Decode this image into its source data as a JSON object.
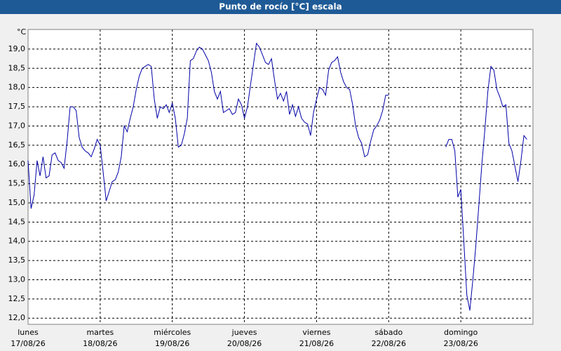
{
  "chart_data": {
    "type": "line",
    "title": "Punto de rocío [°C] escala",
    "y_unit": "°C",
    "x": [
      0,
      1,
      2,
      3,
      4,
      5,
      6,
      7,
      8,
      9,
      10,
      11,
      12,
      13,
      14,
      15,
      16,
      17,
      18,
      19,
      20,
      21,
      22,
      23,
      24,
      25,
      26,
      27,
      28,
      29,
      30,
      31,
      32,
      33,
      34,
      35,
      36,
      37,
      38,
      39,
      40,
      41,
      42,
      43,
      44,
      45,
      46,
      47,
      48,
      49,
      50,
      51,
      52,
      53,
      54,
      55,
      56,
      57,
      58,
      59,
      60,
      61,
      62,
      63,
      64,
      65,
      66,
      67,
      68,
      69,
      70,
      71,
      72,
      73,
      74,
      75,
      76,
      77,
      78,
      79,
      80,
      81,
      82,
      83,
      84,
      85,
      86,
      87,
      88,
      89,
      90,
      91,
      92,
      93,
      94,
      95,
      96,
      97,
      98,
      99,
      100,
      101,
      102,
      103,
      104,
      105,
      106,
      107,
      108,
      109,
      110,
      111,
      112,
      113,
      114,
      115,
      116,
      117,
      118,
      119,
      120,
      130,
      139,
      140,
      141,
      142,
      143,
      144,
      145,
      146,
      147,
      148,
      149,
      150,
      151,
      152,
      153,
      154,
      155,
      156,
      157,
      158,
      159,
      160,
      161,
      162,
      163,
      164,
      165,
      166
    ],
    "series": [
      {
        "name": "Punto de rocío",
        "color": "#0000a8",
        "values": [
          16.1,
          14.85,
          15.2,
          16.1,
          15.7,
          16.2,
          15.65,
          15.7,
          16.25,
          16.3,
          16.1,
          16.05,
          15.9,
          16.6,
          17.5,
          17.5,
          17.4,
          16.7,
          16.45,
          16.35,
          16.3,
          16.2,
          16.4,
          16.65,
          16.5,
          15.8,
          15.05,
          15.3,
          15.55,
          15.6,
          15.8,
          16.2,
          17.0,
          16.85,
          17.2,
          17.5,
          17.95,
          18.3,
          18.5,
          18.55,
          18.6,
          18.55,
          17.7,
          17.2,
          17.5,
          17.45,
          17.55,
          17.35,
          17.6,
          17.2,
          16.45,
          16.5,
          16.8,
          17.2,
          18.7,
          18.75,
          18.95,
          19.05,
          19.0,
          18.85,
          18.7,
          18.4,
          17.9,
          17.7,
          17.9,
          17.35,
          17.4,
          17.45,
          17.3,
          17.35,
          17.7,
          17.55,
          17.2,
          17.5,
          18.05,
          18.6,
          19.15,
          19.05,
          18.85,
          18.65,
          18.6,
          18.75,
          18.2,
          17.7,
          17.85,
          17.65,
          17.9,
          17.3,
          17.55,
          17.25,
          17.5,
          17.2,
          17.1,
          17.05,
          16.75,
          17.35,
          17.7,
          18.0,
          17.95,
          17.8,
          18.45,
          18.65,
          18.7,
          18.8,
          18.4,
          18.15,
          18.0,
          17.95,
          17.55,
          17.0,
          16.7,
          16.55,
          16.2,
          16.25,
          16.6,
          16.9,
          17.0,
          17.15,
          17.4,
          17.8,
          17.8,
          null,
          16.45,
          16.65,
          16.65,
          16.35,
          15.15,
          15.35,
          14.0,
          12.6,
          12.2,
          13.0,
          13.9,
          14.95,
          16.0,
          16.9,
          17.9,
          18.55,
          18.45,
          17.95,
          17.75,
          17.5,
          17.55,
          16.55,
          16.35,
          15.95,
          15.55,
          16.1,
          16.75,
          16.65
        ]
      }
    ],
    "xlim": [
      0,
      168
    ],
    "xticks": [
      {
        "value": 0,
        "label": "lunes"
      },
      {
        "value": 24,
        "label": "martes"
      },
      {
        "value": 48,
        "label": "miércoles"
      },
      {
        "value": 72,
        "label": "jueves"
      },
      {
        "value": 96,
        "label": "viernes"
      },
      {
        "value": 120,
        "label": "sábado"
      },
      {
        "value": 144,
        "label": "domingo"
      }
    ],
    "xtick_dates": [
      "17/08/26",
      "18/08/26",
      "19/08/26",
      "20/08/26",
      "21/08/26",
      "22/08/26",
      "23/08/26"
    ],
    "ylim": [
      11.84,
      19.51
    ],
    "yticks": [
      {
        "value": 12.0,
        "label": "12,0"
      },
      {
        "value": 12.5,
        "label": "12,5"
      },
      {
        "value": 13.0,
        "label": "13,0"
      },
      {
        "value": 13.5,
        "label": "13,5"
      },
      {
        "value": 14.0,
        "label": "14,0"
      },
      {
        "value": 14.5,
        "label": "14,5"
      },
      {
        "value": 15.0,
        "label": "15,0"
      },
      {
        "value": 15.5,
        "label": "15,5"
      },
      {
        "value": 16.0,
        "label": "16,0"
      },
      {
        "value": 16.5,
        "label": "16,5"
      },
      {
        "value": 17.0,
        "label": "17,0"
      },
      {
        "value": 17.5,
        "label": "17,5"
      },
      {
        "value": 18.0,
        "label": "18,0"
      },
      {
        "value": 18.5,
        "label": "18,5"
      },
      {
        "value": 19.0,
        "label": "19,0"
      }
    ],
    "grid": true
  }
}
